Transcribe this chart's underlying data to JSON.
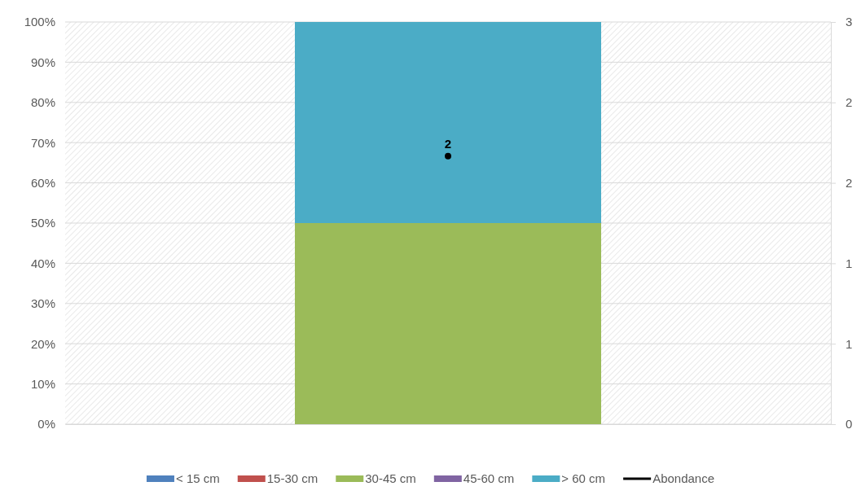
{
  "chart_data": {
    "type": "bar",
    "stacked": true,
    "categories": [
      null
    ],
    "series": [
      {
        "name": "< 15 cm",
        "color": "#4f81bd",
        "values": [
          0
        ]
      },
      {
        "name": "15-30 cm",
        "color": "#c0504d",
        "values": [
          0
        ]
      },
      {
        "name": "30-45 cm",
        "color": "#9bbb59",
        "values": [
          50
        ]
      },
      {
        "name": "45-60 cm",
        "color": "#8064a2",
        "values": [
          0
        ]
      },
      {
        "name": "> 60 cm",
        "color": "#4bacc6",
        "values": [
          50
        ]
      },
      {
        "name": "Abondance",
        "type": "line",
        "axis": "y2",
        "color": "#000000",
        "marker": "circle",
        "values": [
          2
        ],
        "value_labels": [
          "2"
        ]
      }
    ],
    "ylim": [
      0,
      100
    ],
    "yticks": [
      {
        "value": 0,
        "label": "0%"
      },
      {
        "value": 10,
        "label": "10%"
      },
      {
        "value": 20,
        "label": "20%"
      },
      {
        "value": 30,
        "label": "30%"
      },
      {
        "value": 40,
        "label": "40%"
      },
      {
        "value": 50,
        "label": "50%"
      },
      {
        "value": 60,
        "label": "60%"
      },
      {
        "value": 70,
        "label": "70%"
      },
      {
        "value": 80,
        "label": "80%"
      },
      {
        "value": 90,
        "label": "90%"
      },
      {
        "value": 100,
        "label": "100%"
      }
    ],
    "y2lim": [
      0,
      3
    ],
    "y2ticks": [
      0,
      {
        "value": 0.6,
        "label": "1"
      },
      {
        "value": 1.2,
        "label": "1"
      },
      {
        "value": 1.8,
        "label": "2"
      },
      {
        "value": 2.4,
        "label": "2"
      },
      3
    ],
    "grid": "y",
    "legend": "bottom"
  }
}
